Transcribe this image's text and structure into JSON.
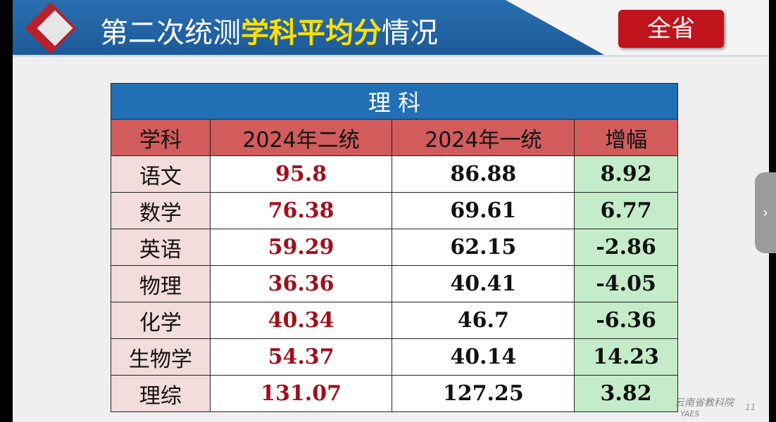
{
  "header": {
    "title_a": "第二次统测",
    "title_b": "学科平均分",
    "title_c": "情况",
    "badge": "全省"
  },
  "table": {
    "title": "理 科",
    "columns": [
      "学科",
      "2024年二统",
      "2024年一统",
      "增幅"
    ],
    "rows": [
      [
        "语文",
        95.8,
        86.88,
        8.92
      ],
      [
        "数学",
        76.38,
        69.61,
        6.77
      ],
      [
        "英语",
        59.29,
        62.15,
        -2.86
      ],
      [
        "物理",
        36.36,
        40.41,
        -4.05
      ],
      [
        "化学",
        40.34,
        46.7,
        -6.36
      ],
      [
        "生物学",
        54.37,
        40.14,
        14.23
      ],
      [
        "理综",
        131.07,
        127.25,
        3.82
      ]
    ]
  },
  "footer": {
    "org": "云南省教科院",
    "abbr": "YAES",
    "page": "11"
  }
}
